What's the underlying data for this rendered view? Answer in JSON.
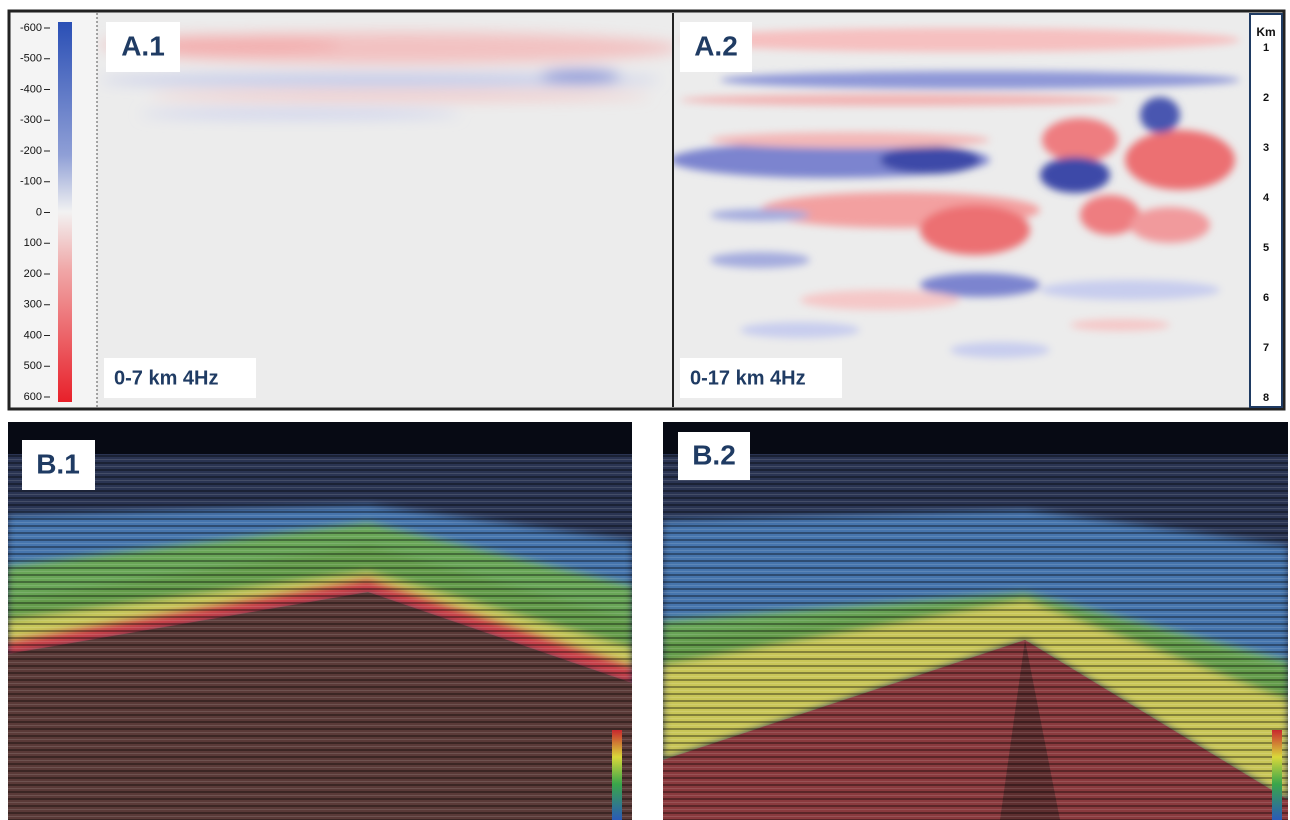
{
  "panels": {
    "a1": {
      "label": "A.1",
      "caption": "0-7 km 4Hz"
    },
    "a2": {
      "label": "A.2",
      "caption": "0-17 km 4Hz"
    },
    "b1": {
      "label": "B.1"
    },
    "b2": {
      "label": "B.2"
    }
  },
  "colorbar": {
    "ticks": [
      -600,
      -500,
      -400,
      -300,
      -200,
      -100,
      0,
      100,
      200,
      300,
      400,
      500,
      600
    ]
  },
  "depth_axis": {
    "unit": "Km",
    "ticks": [
      1,
      2,
      3,
      4,
      5,
      6,
      7,
      8
    ]
  }
}
